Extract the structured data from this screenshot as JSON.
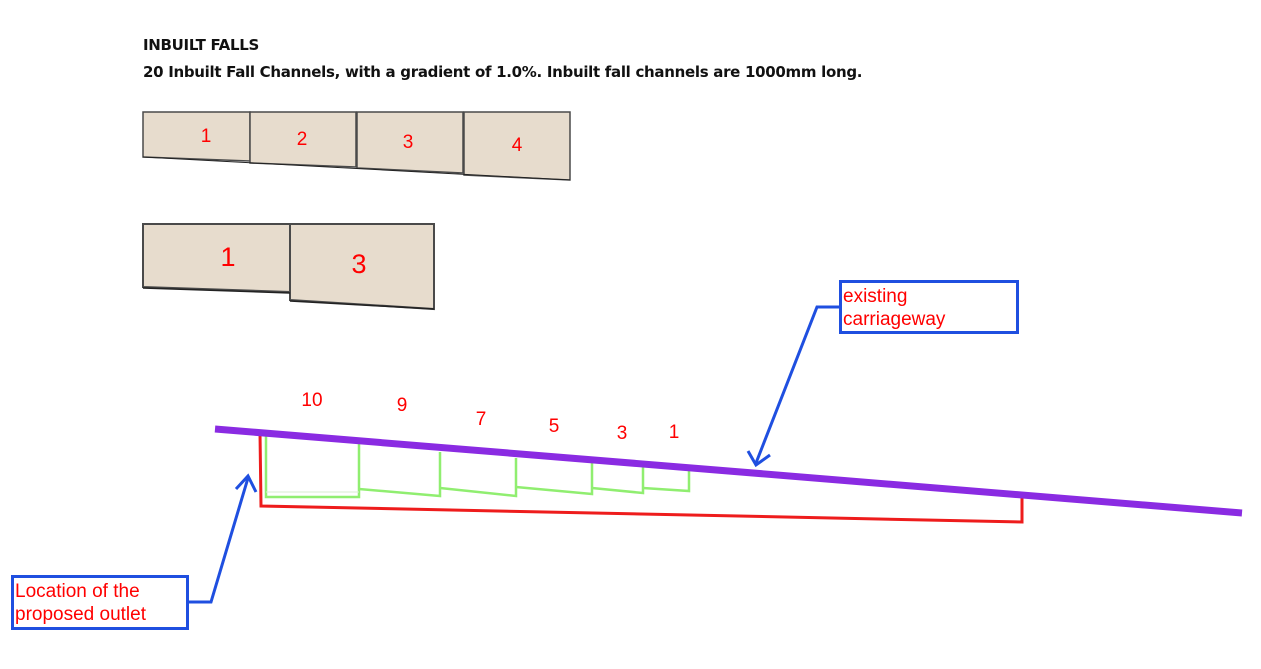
{
  "heading": {
    "title": "INBUILT FALLS",
    "subtitle": "20 Inbuilt Fall Channels, with a gradient of 1.0%. Inbuilt fall channels are 1000mm long."
  },
  "row1_blocks": [
    "1",
    "2",
    "3",
    "4"
  ],
  "row2_blocks": [
    "1",
    "3"
  ],
  "section_labels": [
    "10",
    "9",
    "7",
    "5",
    "3",
    "1"
  ],
  "callouts": {
    "existing": [
      "existing",
      "carriageway"
    ],
    "outlet": [
      "Location of the",
      "proposed outlet"
    ]
  },
  "colors": {
    "block_fill": "#e7dccd",
    "block_stroke": "#4a4a4a",
    "label_red": "#ff0000",
    "carriageway": "#8a2be2",
    "channel_green": "#90ee70",
    "outline_red": "#ee1c1c",
    "callout_blue": "#1f4fe0"
  }
}
